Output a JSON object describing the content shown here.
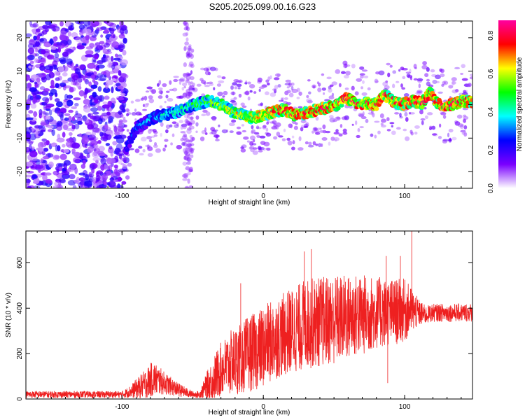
{
  "title": "S205.2025.099.00.16.G23",
  "chart_data": [
    {
      "type": "heatmap",
      "xlabel": "Height of straight line (km)",
      "ylabel": "Frequency (Hz)",
      "xlim": [
        -168,
        148
      ],
      "ylim": [
        -25,
        25
      ],
      "x_ticks": [
        -100,
        0,
        100
      ],
      "y_ticks": [
        -20,
        -10,
        0,
        10,
        20
      ],
      "colorbar": {
        "label": "Normalized spectral amplitude",
        "range": [
          0,
          0.88
        ],
        "ticks": [
          "0.0",
          "0.2",
          "0.4",
          "0.6",
          "0.8"
        ],
        "colors": [
          "#ffffff",
          "#7a00ff",
          "#0000ff",
          "#00ffff",
          "#00ff00",
          "#ffff00",
          "#ff0000",
          "#ff00a0"
        ]
      },
      "ridge": {
        "x": [
          -97,
          -90,
          -82,
          -75,
          -68,
          -60,
          -52,
          -45,
          -38,
          -30,
          -22,
          -15,
          -8,
          0,
          8,
          15,
          22,
          30,
          38,
          45,
          52,
          58,
          63,
          68,
          73,
          80,
          86,
          92,
          98,
          105,
          112,
          118,
          124,
          130,
          136,
          142,
          148
        ],
        "y": [
          -13,
          -7,
          -5,
          -3.5,
          -3,
          -2,
          -0.5,
          0.5,
          1,
          0,
          -2,
          -3,
          -4,
          -3,
          -2,
          -1.5,
          -3,
          -2.5,
          -1.5,
          -1,
          0,
          2,
          1,
          0,
          0.5,
          0,
          3,
          1,
          0,
          1,
          0.5,
          3.5,
          0,
          -0.5,
          0.5,
          1,
          1
        ]
      },
      "scatter_band": {
        "x_range": [
          -168,
          -97
        ],
        "density": "high"
      }
    },
    {
      "type": "line",
      "xlabel": "Height of straight line (km)",
      "ylabel": "SNR (10 * v/v)",
      "xlim": [
        -168,
        148
      ],
      "ylim": [
        0,
        740
      ],
      "x_ticks": [
        -100,
        0,
        100
      ],
      "y_ticks": [
        0,
        200,
        400,
        600
      ],
      "color": "#ee2020",
      "envelope": {
        "x": [
          -168,
          -100,
          -95,
          -85,
          -78,
          -70,
          -60,
          -50,
          -45,
          -40,
          -35,
          -30,
          -25,
          -20,
          -15,
          -10,
          -5,
          0,
          5,
          10,
          20,
          30,
          40,
          50,
          60,
          70,
          80,
          90,
          100,
          105,
          110,
          115,
          120,
          130,
          140,
          148
        ],
        "mean": [
          20,
          20,
          30,
          60,
          90,
          70,
          40,
          20,
          20,
          60,
          90,
          130,
          150,
          170,
          180,
          200,
          210,
          230,
          250,
          270,
          300,
          330,
          340,
          350,
          360,
          370,
          380,
          380,
          390,
          390,
          380,
          370,
          380,
          380,
          380,
          380
        ],
        "amp": [
          15,
          15,
          25,
          60,
          80,
          50,
          30,
          15,
          15,
          60,
          100,
          120,
          140,
          150,
          160,
          170,
          170,
          180,
          180,
          180,
          190,
          200,
          200,
          200,
          190,
          180,
          160,
          150,
          140,
          100,
          60,
          40,
          40,
          40,
          40,
          40
        ]
      },
      "spikes": [
        {
          "x": 105,
          "y": 740
        },
        {
          "x": 29,
          "y": 650
        },
        {
          "x": 34,
          "y": 660
        },
        {
          "x": 87,
          "y": 630
        },
        {
          "x": 97,
          "y": 630
        },
        {
          "x": -16,
          "y": 510
        },
        {
          "x": 88,
          "y": 70
        }
      ]
    }
  ]
}
